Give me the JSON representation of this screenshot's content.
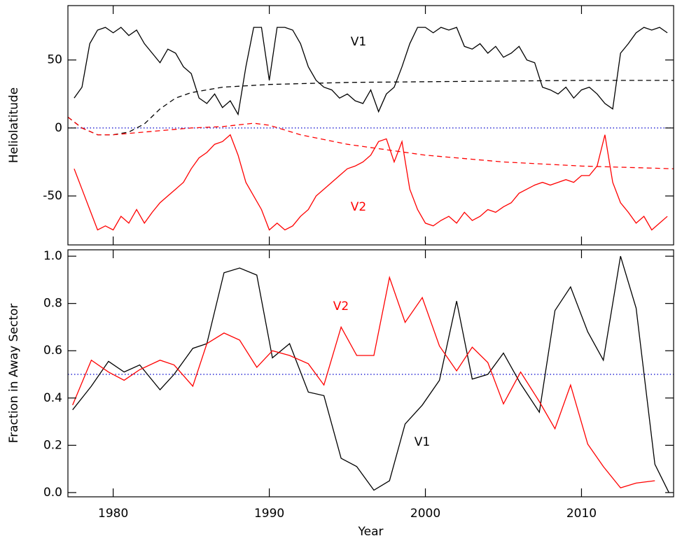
{
  "chart_data": [
    {
      "type": "line",
      "ylabel": "Heliolatitude",
      "xlim": [
        1977.1,
        2015.9
      ],
      "xticks": [
        1980,
        1990,
        2000,
        2010
      ],
      "xtick_labels": false,
      "ylim": [
        -86,
        90
      ],
      "yticks": [
        -50,
        0,
        50
      ],
      "reference_line": {
        "value": 0,
        "color": "#0000cc",
        "style": "dotted"
      },
      "series": [
        {
          "name": "V1",
          "color": "#000000",
          "x": [
            1977.5,
            1978,
            1978.5,
            1979,
            1979.5,
            1980,
            1980.5,
            1981,
            1981.5,
            1982,
            1982.5,
            1983,
            1983.5,
            1984,
            1984.5,
            1985,
            1985.5,
            1986,
            1986.5,
            1987,
            1987.5,
            1988,
            1988.5,
            1989,
            1989.5,
            1990,
            1990.5,
            1991,
            1991.5,
            1992,
            1992.5,
            1993,
            1993.5,
            1994,
            1994.5,
            1995,
            1995.5,
            1996,
            1996.5,
            1997,
            1997.5,
            1998,
            1998.5,
            1999,
            1999.5,
            2000,
            2000.5,
            2001,
            2001.5,
            2002,
            2002.5,
            2003,
            2003.5,
            2004,
            2004.5,
            2005,
            2005.5,
            2006,
            2006.5,
            2007,
            2007.5,
            2008,
            2008.5,
            2009,
            2009.5,
            2010,
            2010.5,
            2011,
            2011.5,
            2012,
            2012.5,
            2013,
            2013.5,
            2014,
            2014.5,
            2015,
            2015.5
          ],
          "values": [
            22,
            30,
            62,
            72,
            74,
            70,
            74,
            68,
            72,
            62,
            55,
            48,
            58,
            55,
            45,
            40,
            22,
            18,
            25,
            15,
            20,
            10,
            45,
            74,
            74,
            35,
            74,
            74,
            72,
            62,
            45,
            35,
            30,
            28,
            22,
            25,
            20,
            18,
            28,
            12,
            25,
            30,
            45,
            62,
            74,
            74,
            70,
            74,
            72,
            74,
            60,
            58,
            62,
            55,
            60,
            52,
            55,
            60,
            50,
            48,
            30,
            28,
            25,
            30,
            22,
            28,
            30,
            25,
            18,
            14,
            55,
            62,
            70,
            74,
            72,
            74,
            70
          ]
        },
        {
          "name": "V2",
          "color": "#ff0000",
          "x": [
            1977.5,
            1978,
            1978.5,
            1979,
            1979.5,
            1980,
            1980.5,
            1981,
            1981.5,
            1982,
            1982.5,
            1983,
            1983.5,
            1984,
            1984.5,
            1985,
            1985.5,
            1986,
            1986.5,
            1987,
            1987.5,
            1988,
            1988.5,
            1989,
            1989.5,
            1990,
            1990.5,
            1991,
            1991.5,
            1992,
            1992.5,
            1993,
            1993.5,
            1994,
            1994.5,
            1995,
            1995.5,
            1996,
            1996.5,
            1997,
            1997.5,
            1998,
            1998.5,
            1999,
            1999.5,
            2000,
            2000.5,
            2001,
            2001.5,
            2002,
            2002.5,
            2003,
            2003.5,
            2004,
            2004.5,
            2005,
            2005.5,
            2006,
            2006.5,
            2007,
            2007.5,
            2008,
            2008.5,
            2009,
            2009.5,
            2010,
            2010.5,
            2011,
            2011.5,
            2012,
            2012.5,
            2013,
            2013.5,
            2014,
            2014.5,
            2015,
            2015.5
          ],
          "values": [
            -30,
            -45,
            -60,
            -75,
            -72,
            -75,
            -65,
            -70,
            -60,
            -70,
            -62,
            -55,
            -50,
            -45,
            -40,
            -30,
            -22,
            -18,
            -12,
            -10,
            -5,
            -20,
            -40,
            -50,
            -60,
            -75,
            -70,
            -75,
            -72,
            -65,
            -60,
            -50,
            -45,
            -40,
            -35,
            -30,
            -28,
            -25,
            -20,
            -10,
            -8,
            -25,
            -10,
            -45,
            -60,
            -70,
            -72,
            -68,
            -65,
            -70,
            -62,
            -68,
            -65,
            -60,
            -62,
            -58,
            -55,
            -48,
            -45,
            -42,
            -40,
            -42,
            -40,
            -38,
            -40,
            -35,
            -35,
            -28,
            -5,
            -40,
            -55,
            -62,
            -70,
            -65,
            -75,
            -70,
            -65
          ]
        },
        {
          "color": "#000000",
          "dash": true,
          "x": [
            1977.1,
            1978,
            1979,
            1980,
            1981,
            1982,
            1983,
            1984,
            1985,
            1987,
            1990,
            1995,
            2000,
            2005,
            2010,
            2015.9
          ],
          "values": [
            8,
            0,
            -5,
            -5,
            -3,
            3,
            14,
            22,
            26,
            30,
            32,
            33.5,
            34,
            34.5,
            35,
            35
          ]
        },
        {
          "color": "#ff0000",
          "dash": true,
          "x": [
            1977.1,
            1978,
            1979,
            1980,
            1981,
            1983,
            1985,
            1987,
            1989,
            1990,
            1992,
            1995,
            2000,
            2005,
            2010,
            2015.9
          ],
          "values": [
            8,
            0,
            -5,
            -5,
            -4,
            -2,
            0,
            1,
            3.5,
            2,
            -5,
            -12,
            -20,
            -25,
            -28,
            -30
          ]
        }
      ]
    },
    {
      "type": "line",
      "ylabel": "Fraction in Away Sector",
      "xlabel": "Year",
      "xlim": [
        1977.1,
        2015.9
      ],
      "xticks": [
        1980,
        1990,
        2000,
        2010
      ],
      "ylim": [
        -0.018,
        1.027
      ],
      "yticks": [
        {
          "value": 0,
          "label": "0.0"
        },
        0.2,
        0.4,
        0.6,
        0.8,
        {
          "value": 1,
          "label": "1.0"
        }
      ],
      "reference_line": {
        "value": 0.5,
        "color": "#0000cc",
        "style": "dotted"
      },
      "series": [
        {
          "name": "V1",
          "color": "#000000",
          "x": [
            1977.4,
            1978.6,
            1979.7,
            1980.7,
            1981.7,
            1983.0,
            1983.9,
            1985.1,
            1986.0,
            1987.1,
            1988.1,
            1989.2,
            1990.2,
            1991.3,
            1992.5,
            1993.5,
            1994.6,
            1995.6,
            1996.7,
            1997.7,
            1998.7,
            1999.8,
            2000.9,
            2002.0,
            2003.0,
            2004.0,
            2005.0,
            2006.1,
            2007.3,
            2008.3,
            2009.3,
            2010.4,
            2011.4,
            2012.5,
            2013.5,
            2014.7,
            2015.6
          ],
          "values": [
            0.35,
            0.45,
            0.555,
            0.51,
            0.54,
            0.435,
            0.5,
            0.61,
            0.63,
            0.93,
            0.95,
            0.92,
            0.57,
            0.63,
            0.425,
            0.41,
            0.145,
            0.11,
            0.01,
            0.05,
            0.29,
            0.37,
            0.475,
            0.81,
            0.48,
            0.5,
            0.59,
            0.46,
            0.34,
            0.77,
            0.87,
            0.68,
            0.56,
            1.0,
            0.78,
            0.12,
            0.0
          ]
        },
        {
          "name": "V2",
          "color": "#ff0000",
          "x": [
            1977.4,
            1978.6,
            1979.7,
            1980.7,
            1981.7,
            1983.0,
            1983.9,
            1985.1,
            1986.0,
            1987.1,
            1988.1,
            1989.2,
            1990.2,
            1991.3,
            1992.5,
            1993.5,
            1994.6,
            1995.6,
            1996.7,
            1997.7,
            1998.7,
            1999.8,
            2000.9,
            2002.0,
            2003.0,
            2004.0,
            2005.0,
            2006.1,
            2007.3,
            2008.3,
            2009.3,
            2010.4,
            2011.4,
            2012.5,
            2013.5,
            2014.7
          ],
          "values": [
            0.37,
            0.56,
            0.51,
            0.475,
            0.52,
            0.56,
            0.54,
            0.45,
            0.63,
            0.675,
            0.645,
            0.53,
            0.6,
            0.58,
            0.545,
            0.455,
            0.7,
            0.58,
            0.58,
            0.91,
            0.72,
            0.825,
            0.62,
            0.515,
            0.615,
            0.55,
            0.375,
            0.51,
            0.385,
            0.27,
            0.455,
            0.205,
            0.11,
            0.02,
            0.04,
            0.05
          ]
        }
      ]
    }
  ]
}
